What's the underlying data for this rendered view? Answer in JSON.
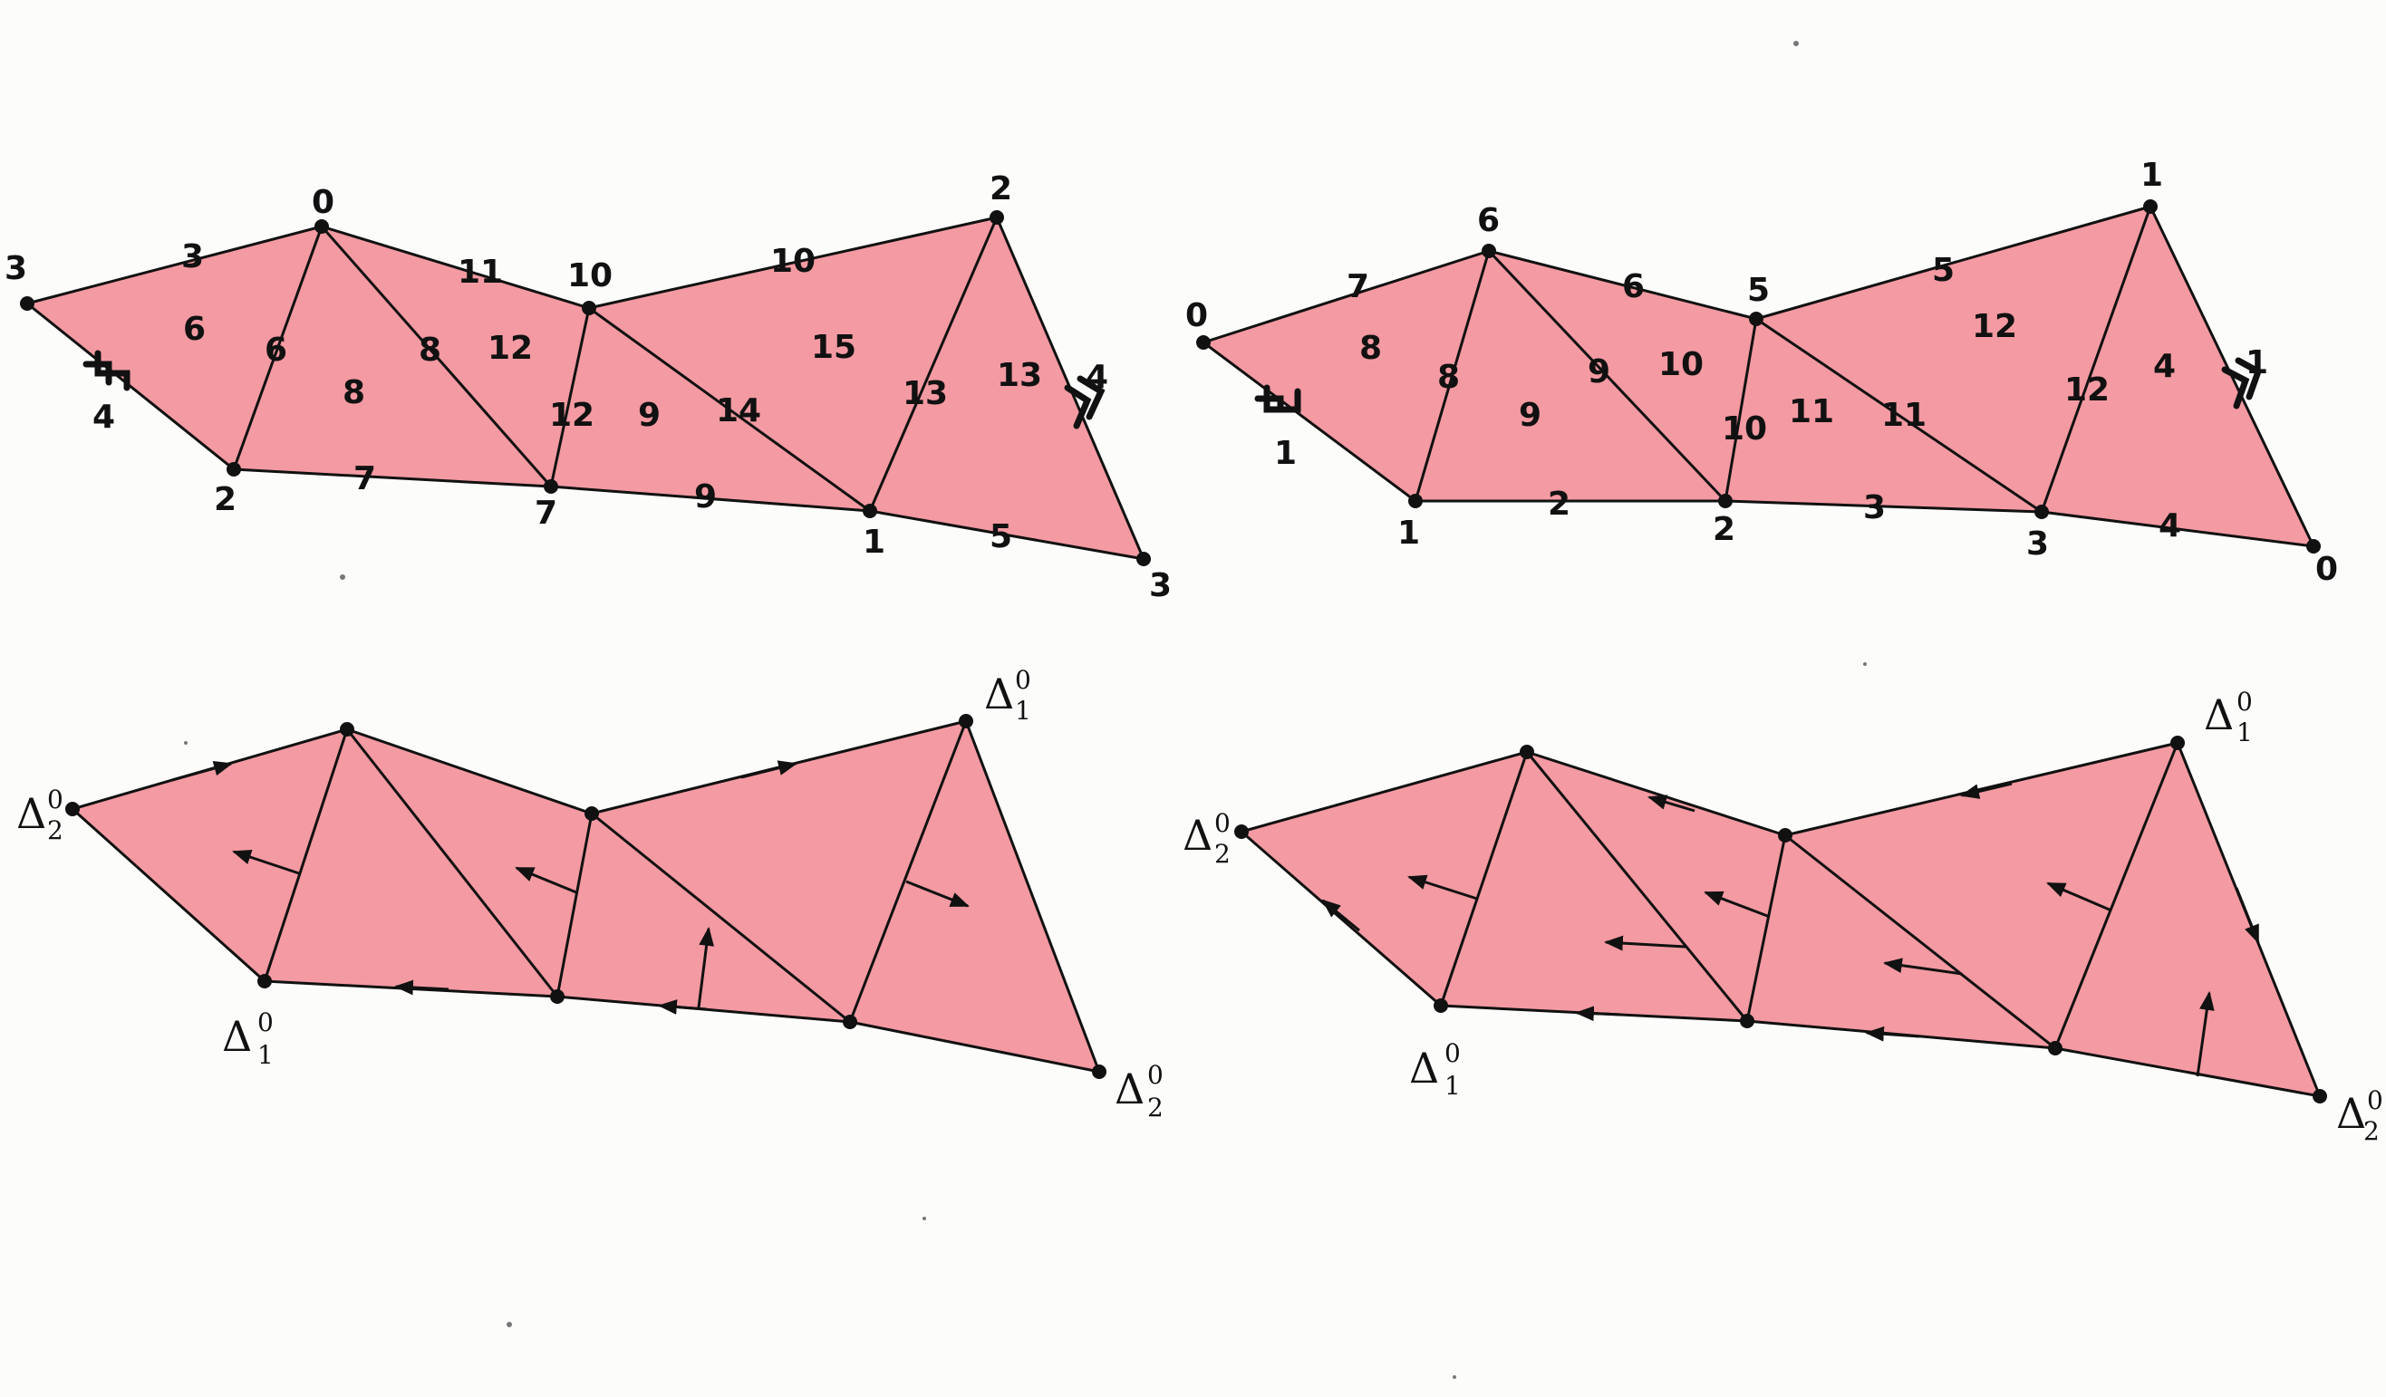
{
  "delta_symbol": "Δ",
  "delta_superscript": "0",
  "delta_subscript_1": "1",
  "delta_subscript_2": "2",
  "colors": {
    "face": "#f39aa2",
    "edge": "#111111",
    "background": "#fcfcfb"
  },
  "top_left": {
    "vertex_labels": [
      "3",
      "0",
      "10",
      "2",
      "2",
      "7",
      "1",
      "3"
    ],
    "edge_labels": [
      "3",
      "11",
      "10",
      "4",
      "6",
      "8",
      "12",
      "7",
      "9",
      "14",
      "13",
      "5",
      "4"
    ],
    "face_labels": [
      "6",
      "8",
      "12",
      "9",
      "15",
      "13"
    ]
  },
  "top_right": {
    "vertex_labels": [
      "0",
      "6",
      "5",
      "1",
      "1",
      "2",
      "3",
      "0"
    ],
    "edge_labels": [
      "7",
      "6",
      "5",
      "1",
      "8",
      "9",
      "10",
      "2",
      "11",
      "3",
      "12",
      "4",
      "1"
    ],
    "face_labels": [
      "8",
      "9",
      "10",
      "11",
      "12",
      "4"
    ]
  }
}
